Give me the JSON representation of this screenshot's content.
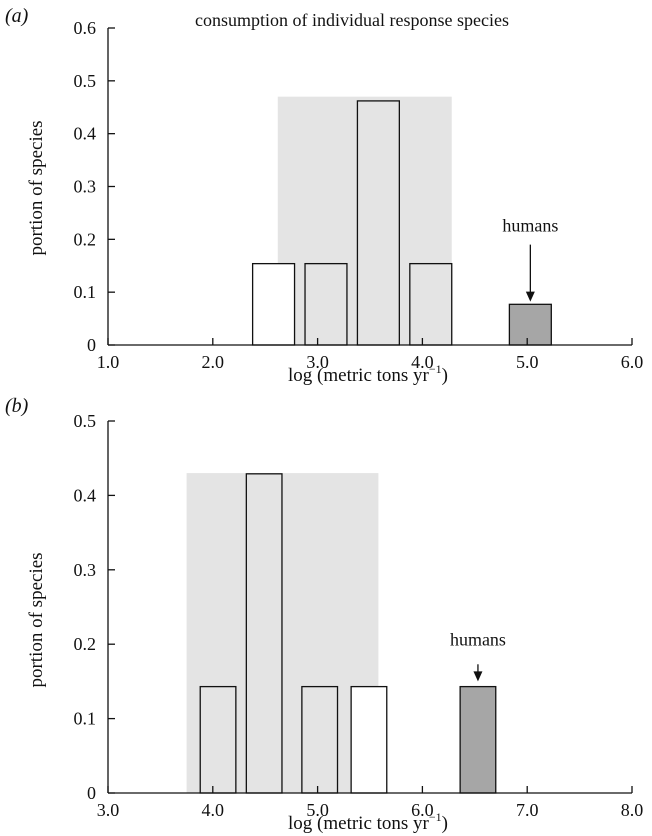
{
  "chart_data": [
    {
      "type": "bar",
      "panel_label": "(a)",
      "title": "consumption of individual response species",
      "xlabel": "log (metric tons yr",
      "xlabel_sup": "−1",
      "xlabel_close": ")",
      "ylabel": "portion of species",
      "xlim": [
        1.0,
        6.0
      ],
      "ylim": [
        0,
        0.6
      ],
      "xticks": [
        "1.0",
        "2.0",
        "3.0",
        "4.0",
        "5.0",
        "6.0"
      ],
      "yticks": [
        "0",
        "0.1",
        "0.2",
        "0.3",
        "0.4",
        "0.5",
        "0.6"
      ],
      "shaded_region": {
        "x": [
          2.62,
          4.28
        ],
        "y_top": 0.47
      },
      "bars": [
        {
          "x": [
            2.38,
            2.78
          ],
          "value": 0.154,
          "fill": "white"
        },
        {
          "x": [
            2.88,
            3.28
          ],
          "value": 0.154,
          "fill": "light"
        },
        {
          "x": [
            3.38,
            3.78
          ],
          "value": 0.462,
          "fill": "light"
        },
        {
          "x": [
            3.88,
            4.28
          ],
          "value": 0.154,
          "fill": "light"
        },
        {
          "x": [
            4.83,
            5.23
          ],
          "value": 0.077,
          "fill": "humans"
        }
      ],
      "annotation": {
        "text": "humans",
        "x": 5.03,
        "y_text": 0.215,
        "y_arrow_top": 0.19,
        "y_arrow_tip": 0.082
      }
    },
    {
      "type": "bar",
      "panel_label": "(b)",
      "title": "",
      "xlabel": "log (metric tons yr",
      "xlabel_sup": "−1",
      "xlabel_close": ")",
      "ylabel": "portion of species",
      "xlim": [
        3.0,
        8.0
      ],
      "ylim": [
        0,
        0.5
      ],
      "xticks": [
        "3.0",
        "4.0",
        "5.0",
        "6.0",
        "7.0",
        "8.0"
      ],
      "yticks": [
        "0",
        "0.1",
        "0.2",
        "0.3",
        "0.4",
        "0.5"
      ],
      "shaded_region": {
        "x": [
          3.75,
          5.58
        ],
        "y_top": 0.43
      },
      "bars": [
        {
          "x": [
            3.88,
            4.22
          ],
          "value": 0.143,
          "fill": "light"
        },
        {
          "x": [
            4.32,
            4.66
          ],
          "value": 0.429,
          "fill": "light"
        },
        {
          "x": [
            4.85,
            5.19
          ],
          "value": 0.143,
          "fill": "light"
        },
        {
          "x": [
            5.32,
            5.66
          ],
          "value": 0.143,
          "fill": "white"
        },
        {
          "x": [
            6.36,
            6.7
          ],
          "value": 0.143,
          "fill": "humans"
        }
      ],
      "annotation": {
        "text": "humans",
        "x": 6.53,
        "y_text": 0.198,
        "y_arrow_top": 0.173,
        "y_arrow_tip": 0.15
      }
    }
  ],
  "colors": {
    "shade": "#e4e4e4",
    "bar_light": "#e4e4e4",
    "bar_white": "#ffffff",
    "bar_humans": "#a6a6a6",
    "stroke": "#111111"
  }
}
